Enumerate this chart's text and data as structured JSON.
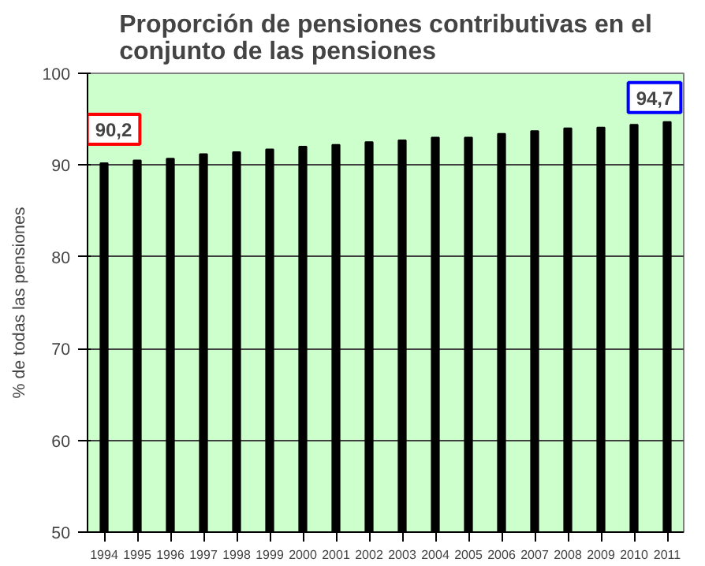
{
  "chart_data": {
    "type": "bar",
    "title": "Proporción de pensiones contributivas en el conjunto de las pensiones",
    "ylabel": "% de todas las pensiones",
    "categories": [
      "1994",
      "1995",
      "1996",
      "1997",
      "1998",
      "1999",
      "2000",
      "2001",
      "2002",
      "2003",
      "2004",
      "2005",
      "2006",
      "2007",
      "2008",
      "2009",
      "2010",
      "2011"
    ],
    "values": [
      90.2,
      90.5,
      90.7,
      91.2,
      91.4,
      91.7,
      92.0,
      92.2,
      92.5,
      92.7,
      93.0,
      93.0,
      93.4,
      93.7,
      94.0,
      94.1,
      94.4,
      94.7
    ],
    "color": "#000000",
    "ylim": [
      50,
      100
    ],
    "yticks": [
      50,
      60,
      70,
      80,
      90,
      100
    ],
    "grid": "y",
    "annotations": [
      {
        "text": "90,2",
        "x": "1994",
        "y": 90.2
      },
      {
        "text": "94,7",
        "x": "2011",
        "y": 94.7
      }
    ]
  }
}
